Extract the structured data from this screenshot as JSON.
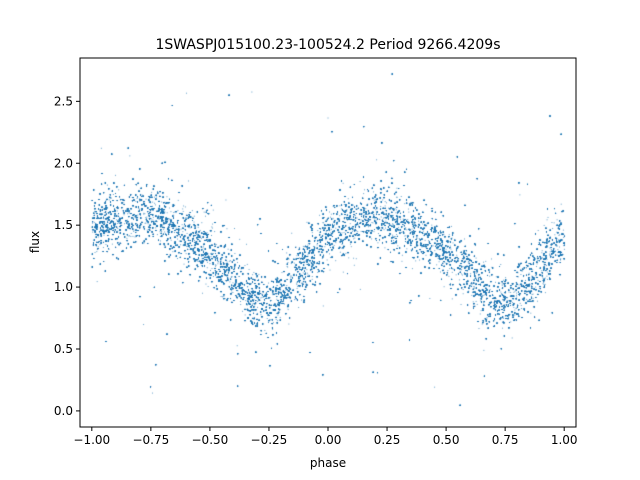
{
  "chart_data": {
    "type": "scatter",
    "title": "1SWASPJ015100.23-100524.2 Period 9266.4209s",
    "xlabel": "phase",
    "ylabel": "flux",
    "xlim": [
      -1.05,
      1.05
    ],
    "ylim": [
      -0.13,
      2.85
    ],
    "x_ticks": [
      -1.0,
      -0.75,
      -0.5,
      -0.25,
      0.0,
      0.25,
      0.5,
      0.75,
      1.0
    ],
    "x_tick_labels": [
      "−1.00",
      "−0.75",
      "−0.50",
      "−0.25",
      "0.00",
      "0.25",
      "0.50",
      "0.75",
      "1.00"
    ],
    "y_ticks": [
      0.0,
      0.5,
      1.0,
      1.5,
      2.0,
      2.5
    ],
    "y_tick_labels": [
      "0.0",
      "0.5",
      "1.0",
      "1.5",
      "2.0",
      "2.5"
    ],
    "grid": false,
    "legend": false,
    "point_color": "#1f77b4",
    "series": [
      {
        "phase_range": [
          -1.0,
          1.0
        ],
        "approx_point_count": 30000,
        "trend_points": {
          "x": [
            -1.0,
            -0.9,
            -0.8,
            -0.75,
            -0.7,
            -0.6,
            -0.5,
            -0.4,
            -0.3,
            -0.25,
            -0.2,
            -0.1,
            0.0,
            0.1,
            0.2,
            0.25,
            0.3,
            0.4,
            0.5,
            0.6,
            0.7,
            0.75,
            0.8,
            0.9,
            1.0
          ],
          "y": [
            1.45,
            1.55,
            1.58,
            1.57,
            1.53,
            1.42,
            1.27,
            1.08,
            0.9,
            0.88,
            0.95,
            1.18,
            1.4,
            1.53,
            1.58,
            1.57,
            1.52,
            1.42,
            1.27,
            1.08,
            0.9,
            0.88,
            0.95,
            1.18,
            1.4
          ]
        },
        "scatter_sigma": 0.12,
        "outlier_range": [
          0.0,
          2.75
        ]
      }
    ]
  }
}
